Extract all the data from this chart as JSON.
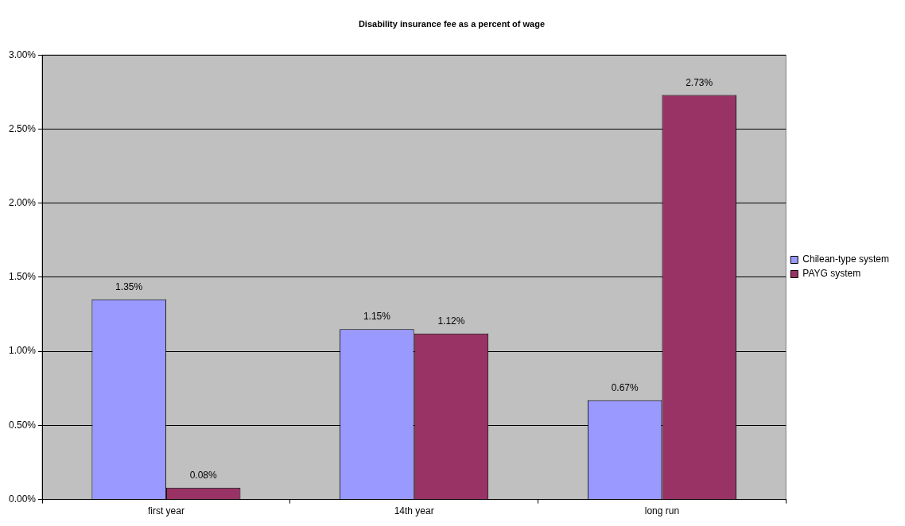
{
  "chart_data": {
    "type": "bar",
    "title": "Disability insurance fee as a percent of wage",
    "categories": [
      "first year",
      "14th year",
      "long run"
    ],
    "series": [
      {
        "name": "Chilean-type system",
        "color": "#9999ff",
        "values": [
          1.35,
          1.15,
          0.67
        ],
        "value_labels": [
          "1.35%",
          "1.15%",
          "0.67%"
        ]
      },
      {
        "name": "PAYG system",
        "color": "#993366",
        "values": [
          0.08,
          1.12,
          2.73
        ],
        "value_labels": [
          "0.08%",
          "1.12%",
          "2.73%"
        ]
      }
    ],
    "ylim": [
      0,
      3
    ],
    "yticks": [
      {
        "value": 0,
        "label": "0.00%"
      },
      {
        "value": 0.5,
        "label": "0.50%"
      },
      {
        "value": 1,
        "label": "1.00%"
      },
      {
        "value": 1.5,
        "label": "1.50%"
      },
      {
        "value": 2,
        "label": "2.00%"
      },
      {
        "value": 2.5,
        "label": "2.50%"
      },
      {
        "value": 3,
        "label": "3.00%"
      }
    ],
    "grid": "y",
    "legend": "right"
  }
}
